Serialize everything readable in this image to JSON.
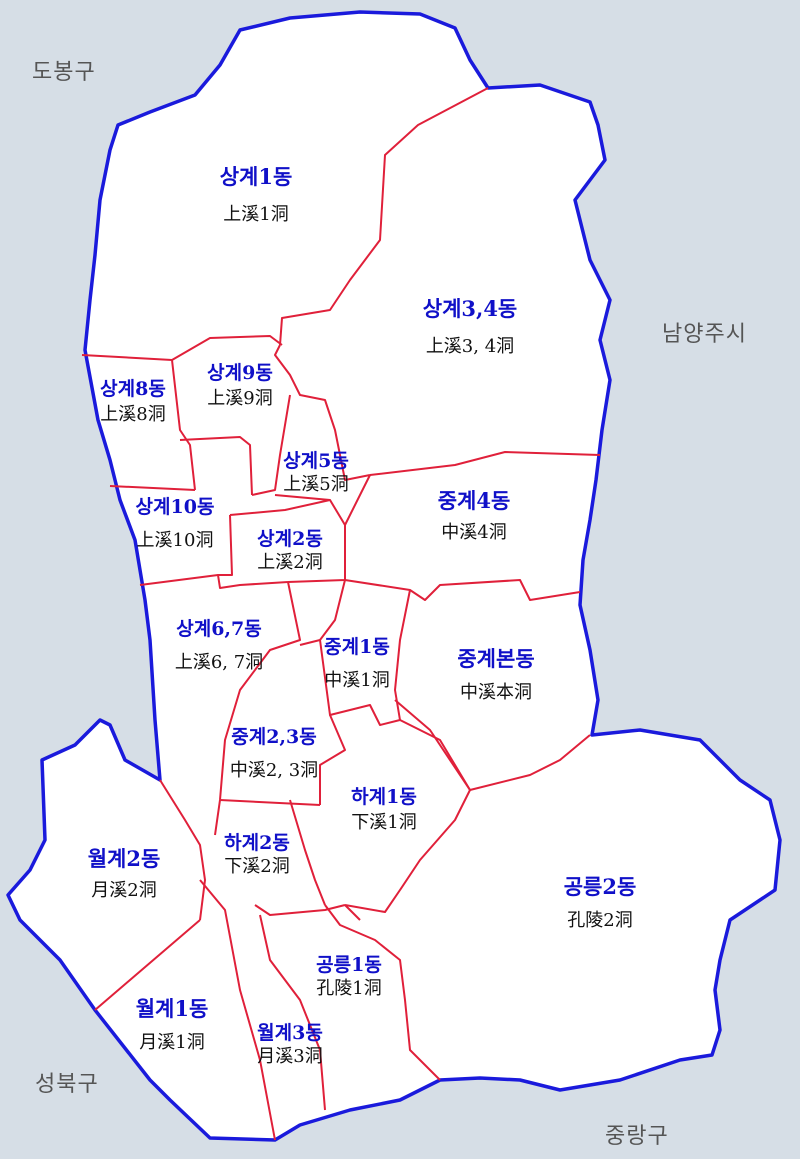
{
  "neighbors": {
    "dobong": "도봉구",
    "namyangju": "남양주시",
    "seongbuk": "성북구",
    "jungnang": "중랑구"
  },
  "dongs": [
    {
      "id": "sanggye-1",
      "ko": "상계1동",
      "hanja": "上溪1洞"
    },
    {
      "id": "sanggye-34",
      "ko": "상계3,4동",
      "hanja": "上溪3, 4洞"
    },
    {
      "id": "sanggye-8",
      "ko": "상계8동",
      "hanja": "上溪8洞"
    },
    {
      "id": "sanggye-9",
      "ko": "상계9동",
      "hanja": "上溪9洞"
    },
    {
      "id": "sanggye-5",
      "ko": "상계5동",
      "hanja": "上溪5洞"
    },
    {
      "id": "sanggye-10",
      "ko": "상계10동",
      "hanja": "上溪10洞"
    },
    {
      "id": "sanggye-2",
      "ko": "상계2동",
      "hanja": "上溪2洞"
    },
    {
      "id": "junggye-4",
      "ko": "중계4동",
      "hanja": "中溪4洞"
    },
    {
      "id": "sanggye-67",
      "ko": "상계6,7동",
      "hanja": "上溪6, 7洞"
    },
    {
      "id": "junggye-1",
      "ko": "중계1동",
      "hanja": "中溪1洞"
    },
    {
      "id": "junggye-bon",
      "ko": "중계본동",
      "hanja": "中溪本洞"
    },
    {
      "id": "junggye-23",
      "ko": "중계2,3동",
      "hanja": "中溪2, 3洞"
    },
    {
      "id": "hagye-1",
      "ko": "하계1동",
      "hanja": "下溪1洞"
    },
    {
      "id": "wolgye-2",
      "ko": "월계2동",
      "hanja": "月溪2洞"
    },
    {
      "id": "hagye-2",
      "ko": "하계2동",
      "hanja": "下溪2洞"
    },
    {
      "id": "gongneung-2",
      "ko": "공릉2동",
      "hanja": "孔陵2洞"
    },
    {
      "id": "gongneung-1",
      "ko": "공릉1동",
      "hanja": "孔陵1洞"
    },
    {
      "id": "wolgye-1",
      "ko": "월계1동",
      "hanja": "月溪1洞"
    },
    {
      "id": "wolgye-3",
      "ko": "월계3동",
      "hanja": "月溪3洞"
    }
  ],
  "colors": {
    "background": "#d6dee6",
    "district_fill": "#ffffff",
    "outer_border": "#1a1adc",
    "inner_border": "#e0203a",
    "dong_name": "#1010c8",
    "hanja": "#111111",
    "neighbor_label": "#555555"
  }
}
